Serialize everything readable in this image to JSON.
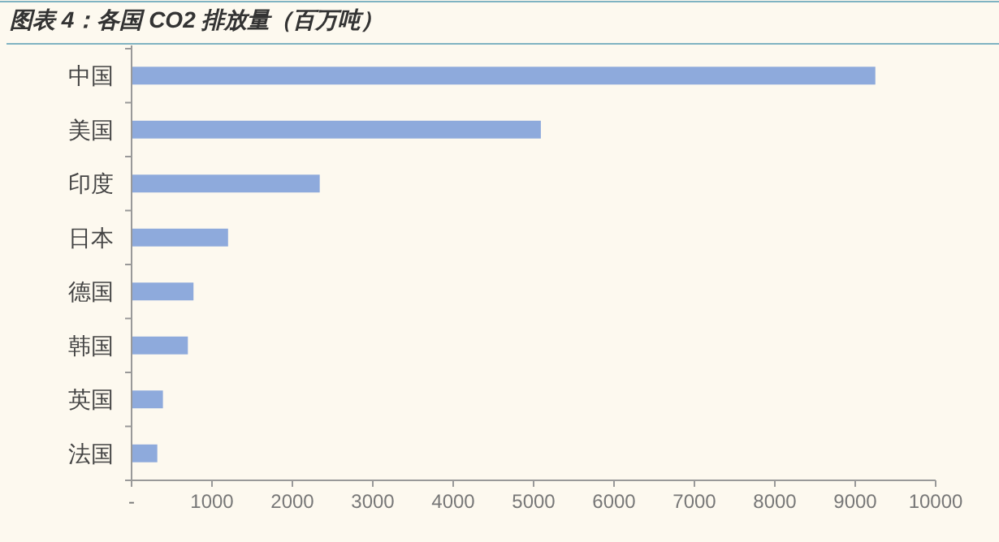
{
  "chart_data": {
    "type": "bar",
    "orientation": "horizontal",
    "title": "图表 4：各国 CO2 排放量（百万吨）",
    "categories": [
      "中国",
      "美国",
      "印度",
      "日本",
      "德国",
      "韩国",
      "英国",
      "法国"
    ],
    "values": [
      9250,
      5090,
      2340,
      1200,
      770,
      700,
      390,
      320
    ],
    "color": "#8eaadc",
    "xlim": [
      0,
      10000
    ],
    "xticks": [
      {
        "value": 0,
        "label": "-"
      },
      1000,
      2000,
      3000,
      4000,
      5000,
      6000,
      7000,
      8000,
      9000,
      10000
    ],
    "grid": false
  }
}
